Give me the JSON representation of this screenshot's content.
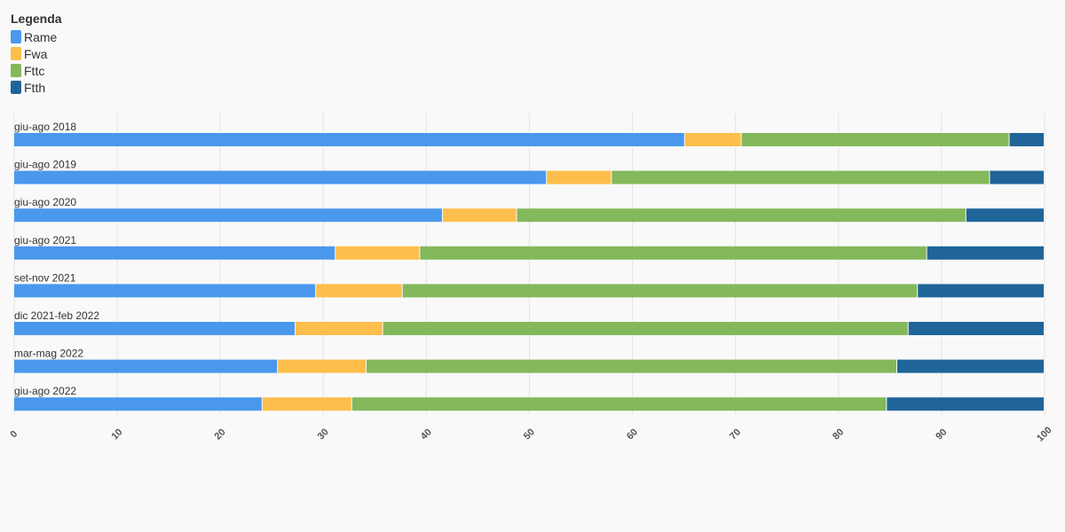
{
  "legend": {
    "title": "Legenda",
    "items": [
      {
        "label": "Rame",
        "color": "#4a98ee"
      },
      {
        "label": "Fwa",
        "color": "#fdbe4b"
      },
      {
        "label": "Fttc",
        "color": "#83b85b"
      },
      {
        "label": "Ftth",
        "color": "#1f6599"
      }
    ]
  },
  "chart_data": {
    "type": "bar",
    "orientation": "horizontal",
    "stacked": true,
    "categories": [
      "giu-ago 2018",
      "giu-ago 2019",
      "giu-ago 2020",
      "giu-ago 2021",
      "set-nov 2021",
      "dic 2021-feb 2022",
      "mar-mag 2022",
      "giu-ago 2022"
    ],
    "series": [
      {
        "name": "Rame",
        "color": "#4a98ee",
        "values": [
          65.1,
          51.7,
          41.6,
          31.2,
          29.3,
          27.3,
          25.6,
          24.1
        ]
      },
      {
        "name": "Fwa",
        "color": "#fdbe4b",
        "values": [
          5.5,
          6.3,
          7.2,
          8.2,
          8.4,
          8.5,
          8.6,
          8.7
        ]
      },
      {
        "name": "Fttc",
        "color": "#83b85b",
        "values": [
          26.0,
          36.7,
          43.6,
          49.2,
          50.0,
          51.0,
          51.5,
          51.9
        ]
      },
      {
        "name": "Ftth",
        "color": "#1f6599",
        "values": [
          3.4,
          5.3,
          7.6,
          11.4,
          12.3,
          13.2,
          14.3,
          15.3
        ]
      }
    ],
    "xlim": [
      0,
      100
    ],
    "xticks": [
      "0",
      "10",
      "20",
      "30",
      "40",
      "50",
      "60",
      "70",
      "80",
      "90",
      "100"
    ],
    "grid": true,
    "legend_position": "top-left"
  }
}
